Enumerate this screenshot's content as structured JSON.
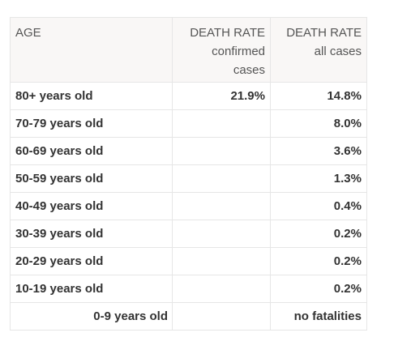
{
  "table": {
    "headers": {
      "age": "AGE",
      "confirmed": {
        "title": "DEATH RATE",
        "subtitle_1": "confirmed",
        "subtitle_2": "cases"
      },
      "all": {
        "title": "DEATH RATE",
        "subtitle_1": "all cases"
      }
    },
    "rows": [
      {
        "age": "80+ years old",
        "confirmed": "21.9%",
        "all": "14.8%"
      },
      {
        "age": "70-79 years old",
        "confirmed": "",
        "all": "8.0%"
      },
      {
        "age": "60-69 years old",
        "confirmed": "",
        "all": "3.6%"
      },
      {
        "age": "50-59 years old",
        "confirmed": "",
        "all": "1.3%"
      },
      {
        "age": "40-49 years old",
        "confirmed": "",
        "all": "0.4%"
      },
      {
        "age": "30-39 years old",
        "confirmed": "",
        "all": "0.2%"
      },
      {
        "age": "20-29 years old",
        "confirmed": "",
        "all": "0.2%"
      },
      {
        "age": "10-19 years old",
        "confirmed": "",
        "all": "0.2%"
      },
      {
        "age": "0-9 years old",
        "confirmed": "",
        "all": "no fatalities"
      }
    ]
  }
}
